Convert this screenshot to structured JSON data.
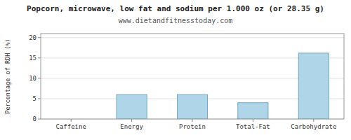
{
  "chart_data": {
    "type": "bar",
    "title": "Popcorn, microwave, low fat and sodium per 1.000 oz (or 28.35 g)",
    "subtitle": "www.dietandfitnesstoday.com",
    "categories": [
      "Caffeine",
      "Energy",
      "Protein",
      "Total-Fat",
      "Carbohydrate"
    ],
    "values": [
      0,
      6.0,
      6.0,
      4.0,
      16.2
    ],
    "color": "#aed6e8",
    "ylabel": "Percentage of RDH (%)",
    "ylim": [
      0,
      21
    ],
    "yticks": [
      0,
      5,
      10,
      15,
      20
    ],
    "grid": true
  }
}
